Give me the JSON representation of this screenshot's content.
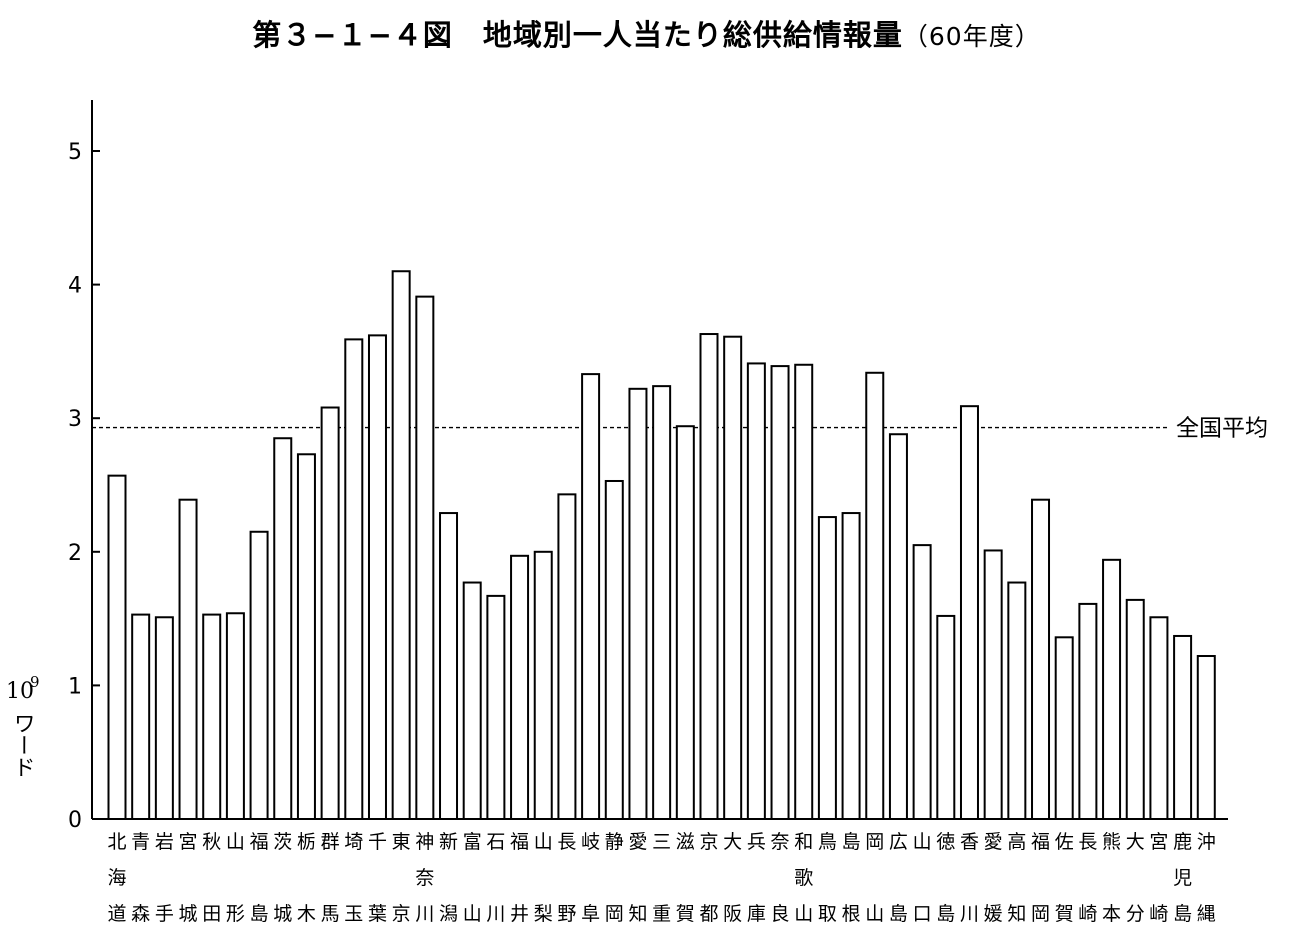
{
  "title_main": "第３−１−４図　地域別一人当たり総供給情報量",
  "title_year": "（60年度）",
  "chart_data": {
    "type": "bar",
    "title": "第３−１−４図　地域別一人当たり総供給情報量（60年度）",
    "ylabel_unit": "10",
    "ylabel_exp": "9",
    "ylabel_word": "ワード",
    "ylim": [
      0,
      5
    ],
    "yticks": [
      0,
      1,
      2,
      3,
      4,
      5
    ],
    "grid": false,
    "reference_line": {
      "label": "全国平均",
      "value": 2.93
    },
    "categories": [
      [
        "北",
        "海",
        "道"
      ],
      [
        "青",
        "",
        "森"
      ],
      [
        "岩",
        "",
        "手"
      ],
      [
        "宮",
        "",
        "城"
      ],
      [
        "秋",
        "",
        "田"
      ],
      [
        "山",
        "",
        "形"
      ],
      [
        "福",
        "",
        "島"
      ],
      [
        "茨",
        "",
        "城"
      ],
      [
        "栃",
        "",
        "木"
      ],
      [
        "群",
        "",
        "馬"
      ],
      [
        "埼",
        "",
        "玉"
      ],
      [
        "千",
        "",
        "葉"
      ],
      [
        "東",
        "",
        "京"
      ],
      [
        "神",
        "奈",
        "川"
      ],
      [
        "新",
        "",
        "潟"
      ],
      [
        "富",
        "",
        "山"
      ],
      [
        "石",
        "",
        "川"
      ],
      [
        "福",
        "",
        "井"
      ],
      [
        "山",
        "",
        "梨"
      ],
      [
        "長",
        "",
        "野"
      ],
      [
        "岐",
        "",
        "阜"
      ],
      [
        "静",
        "",
        "岡"
      ],
      [
        "愛",
        "",
        "知"
      ],
      [
        "三",
        "",
        "重"
      ],
      [
        "滋",
        "",
        "賀"
      ],
      [
        "京",
        "",
        "都"
      ],
      [
        "大",
        "",
        "阪"
      ],
      [
        "兵",
        "",
        "庫"
      ],
      [
        "奈",
        "",
        "良"
      ],
      [
        "和",
        "歌",
        "山"
      ],
      [
        "鳥",
        "",
        "取"
      ],
      [
        "島",
        "",
        "根"
      ],
      [
        "岡",
        "",
        "山"
      ],
      [
        "広",
        "",
        "島"
      ],
      [
        "山",
        "",
        "口"
      ],
      [
        "徳",
        "",
        "島"
      ],
      [
        "香",
        "",
        "川"
      ],
      [
        "愛",
        "",
        "媛"
      ],
      [
        "高",
        "",
        "知"
      ],
      [
        "福",
        "",
        "岡"
      ],
      [
        "佐",
        "",
        "賀"
      ],
      [
        "長",
        "",
        "崎"
      ],
      [
        "熊",
        "",
        "本"
      ],
      [
        "大",
        "",
        "分"
      ],
      [
        "宮",
        "",
        "崎"
      ],
      [
        "鹿",
        "児",
        "島"
      ],
      [
        "沖",
        "",
        "縄"
      ]
    ],
    "values": [
      2.57,
      1.53,
      1.51,
      2.39,
      1.53,
      1.54,
      2.15,
      2.85,
      2.73,
      3.08,
      3.59,
      3.62,
      4.1,
      3.91,
      2.29,
      1.77,
      1.67,
      1.97,
      2.0,
      2.43,
      3.33,
      2.53,
      3.22,
      3.24,
      2.94,
      3.63,
      3.61,
      3.41,
      3.39,
      3.4,
      2.26,
      2.29,
      3.34,
      2.88,
      2.05,
      1.52,
      3.09,
      2.01,
      1.77,
      2.39,
      1.36,
      1.61,
      1.94,
      1.64,
      1.51,
      1.37,
      1.22
    ]
  }
}
